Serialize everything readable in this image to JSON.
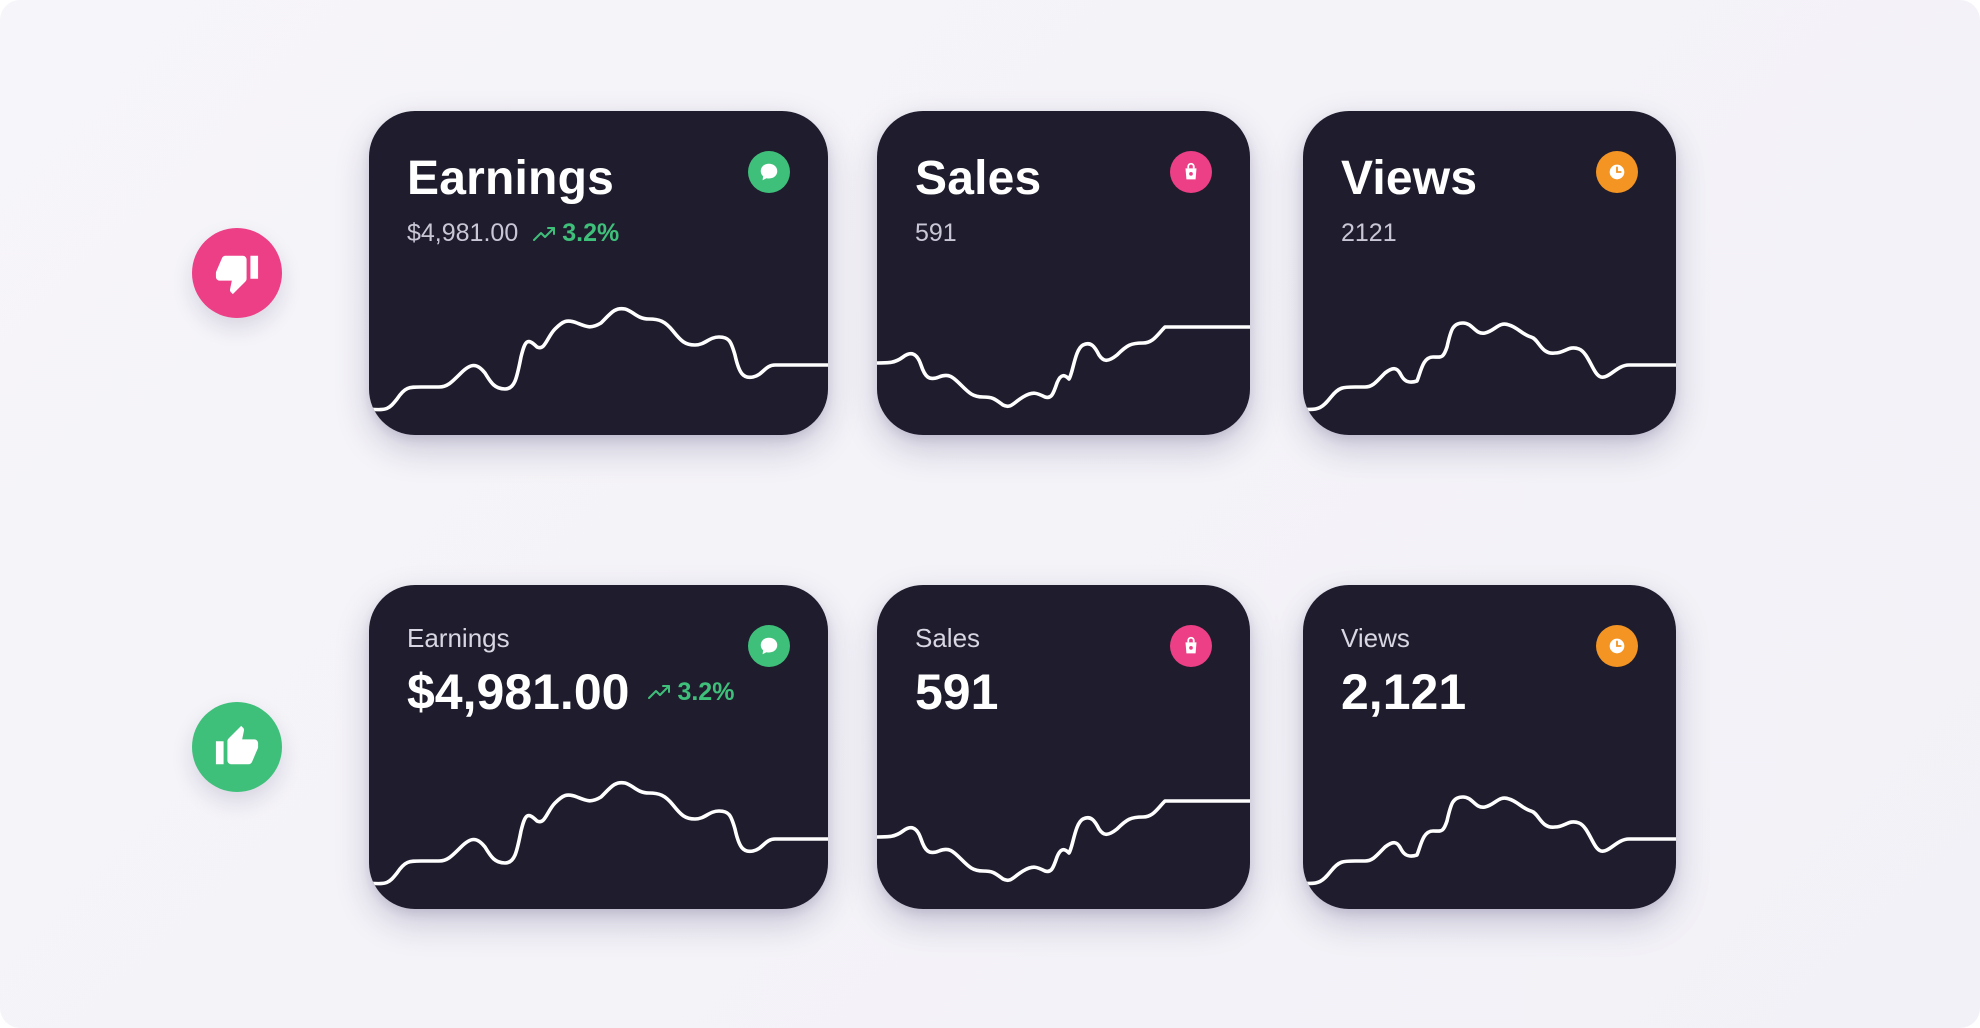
{
  "comparison": {
    "dont": {
      "icon": "thumbs-down-icon",
      "color": "#ec3f86"
    },
    "do": {
      "icon": "thumbs-up-icon",
      "color": "#3fc07a"
    }
  },
  "row_bad": {
    "earnings": {
      "title": "Earnings",
      "value": "$4,981.00",
      "trend": "3.2%",
      "badge_icon": "chat-bubble-icon",
      "badge_color": "#3fc07a"
    },
    "sales": {
      "title": "Sales",
      "value": "591",
      "badge_icon": "shopping-bag-icon",
      "badge_color": "#ec3f86"
    },
    "views": {
      "title": "Views",
      "value": "2121",
      "badge_icon": "clock-icon",
      "badge_color": "#f39423"
    }
  },
  "row_good": {
    "earnings": {
      "title": "Earnings",
      "value": "$4,981.00",
      "trend": "3.2%",
      "badge_icon": "chat-bubble-icon",
      "badge_color": "#3fc07a"
    },
    "sales": {
      "title": "Sales",
      "value": "591",
      "badge_icon": "shopping-bag-icon",
      "badge_color": "#ec3f86"
    },
    "views": {
      "title": "Views",
      "value": "2,121",
      "badge_icon": "clock-icon",
      "badge_color": "#f39423"
    }
  }
}
